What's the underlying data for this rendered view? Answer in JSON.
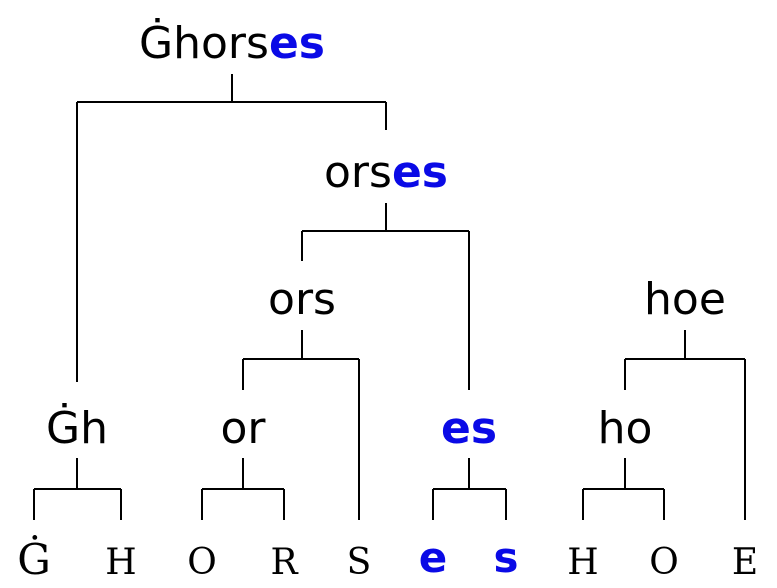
{
  "nodes": {
    "root": {
      "plain": "Ġhors",
      "highlight": "es"
    },
    "orses": {
      "plain": "ors",
      "highlight": "es"
    },
    "ors": {
      "plain": "ors"
    },
    "hoe": {
      "plain": "hoe"
    },
    "gh": {
      "plain": "Ġh"
    },
    "or": {
      "plain": "or"
    },
    "es": {
      "highlight": "es"
    },
    "ho": {
      "plain": "ho"
    }
  },
  "leaves": [
    "Ġ",
    "H",
    "O",
    "R",
    "S",
    "e",
    "s",
    "H",
    "O",
    "E"
  ],
  "colors": {
    "highlight": "#0a0ae6",
    "text": "#000000",
    "line": "#000000"
  }
}
